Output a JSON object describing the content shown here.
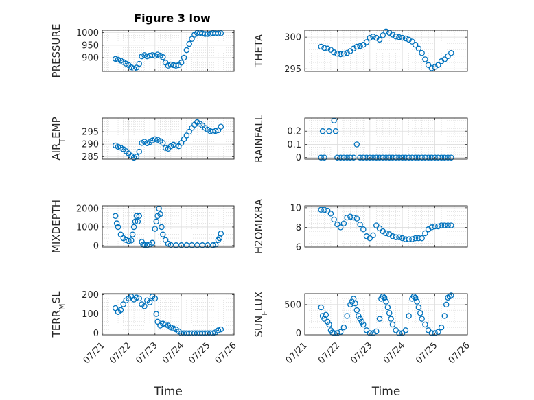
{
  "figure": {
    "title": "Figure 3 low",
    "marker_color": "#0072bd"
  },
  "chart_data": [
    {
      "type": "scatter",
      "ylabel": "PRESSURE",
      "xlabel": "",
      "xlim": [
        0,
        5
      ],
      "ylim": [
        845,
        1010
      ],
      "xticks": [
        0,
        1,
        2,
        3,
        4,
        5
      ],
      "xticklabels": [
        "07/21",
        "07/22",
        "07/23",
        "07/24",
        "07/25",
        "07/26"
      ],
      "yticks": [
        900,
        950,
        1000
      ],
      "yticklabels": [
        "900",
        "950",
        "1000"
      ],
      "x": [
        0.5,
        0.6,
        0.7,
        0.8,
        0.9,
        1.0,
        1.1,
        1.2,
        1.3,
        1.4,
        1.5,
        1.6,
        1.7,
        1.8,
        1.9,
        2.0,
        2.1,
        2.2,
        2.3,
        2.4,
        2.5,
        2.6,
        2.7,
        2.8,
        2.9,
        3.0,
        3.1,
        3.2,
        3.3,
        3.4,
        3.5,
        3.6,
        3.7,
        3.8,
        3.9,
        4.0,
        4.1,
        4.2,
        4.3,
        4.4,
        4.5
      ],
      "y": [
        895,
        892,
        888,
        882,
        876,
        870,
        861,
        856,
        860,
        875,
        905,
        910,
        905,
        908,
        910,
        908,
        912,
        908,
        902,
        880,
        868,
        872,
        870,
        868,
        870,
        880,
        900,
        930,
        955,
        975,
        992,
        999,
        1000,
        997,
        995,
        995,
        996,
        998,
        997,
        997,
        998
      ]
    },
    {
      "type": "scatter",
      "ylabel": "THETA",
      "xlabel": "",
      "xlim": [
        0,
        5
      ],
      "ylim": [
        294.6,
        301.1
      ],
      "xticks": [
        0,
        1,
        2,
        3,
        4,
        5
      ],
      "xticklabels": [
        "07/21",
        "07/22",
        "07/23",
        "07/24",
        "07/25",
        "07/26"
      ],
      "yticks": [
        295,
        300
      ],
      "yticklabels": [
        "295",
        "300"
      ],
      "x": [
        0.5,
        0.6,
        0.7,
        0.8,
        0.9,
        1.0,
        1.1,
        1.2,
        1.3,
        1.4,
        1.5,
        1.6,
        1.7,
        1.8,
        1.9,
        2.0,
        2.1,
        2.2,
        2.3,
        2.4,
        2.5,
        2.6,
        2.7,
        2.8,
        2.9,
        3.0,
        3.1,
        3.2,
        3.3,
        3.4,
        3.5,
        3.6,
        3.7,
        3.8,
        3.9,
        4.0,
        4.1,
        4.2,
        4.3,
        4.4,
        4.5
      ],
      "y": [
        298.5,
        298.3,
        298.2,
        298.0,
        297.6,
        297.4,
        297.3,
        297.4,
        297.5,
        297.8,
        298.2,
        298.5,
        298.6,
        298.8,
        299.2,
        299.9,
        300.1,
        299.9,
        299.6,
        300.3,
        300.9,
        300.7,
        300.4,
        300.1,
        300.0,
        299.9,
        299.8,
        299.6,
        299.3,
        298.8,
        298.2,
        297.5,
        296.5,
        295.6,
        295.1,
        295.3,
        295.6,
        296.2,
        296.5,
        297.0,
        297.5
      ]
    },
    {
      "type": "scatter",
      "ylabel": "AIR_T_EMP",
      "xlabel": "",
      "xlim": [
        0,
        5
      ],
      "ylim": [
        284,
        300.5
      ],
      "xticks": [
        0,
        1,
        2,
        3,
        4,
        5
      ],
      "xticklabels": [
        "07/21",
        "07/22",
        "07/23",
        "07/24",
        "07/25",
        "07/26"
      ],
      "yticks": [
        285,
        290,
        295
      ],
      "yticklabels": [
        "285",
        "290",
        "295"
      ],
      "x": [
        0.5,
        0.6,
        0.7,
        0.8,
        0.9,
        1.0,
        1.1,
        1.2,
        1.3,
        1.4,
        1.5,
        1.6,
        1.7,
        1.8,
        1.9,
        2.0,
        2.1,
        2.2,
        2.3,
        2.4,
        2.5,
        2.6,
        2.7,
        2.8,
        2.9,
        3.0,
        3.1,
        3.2,
        3.3,
        3.4,
        3.5,
        3.6,
        3.7,
        3.8,
        3.9,
        4.0,
        4.1,
        4.2,
        4.3,
        4.4,
        4.5
      ],
      "y": [
        289.5,
        289.0,
        288.6,
        288.0,
        287.2,
        286.3,
        285.3,
        284.6,
        285.0,
        287.0,
        290.5,
        291.0,
        290.4,
        290.8,
        291.5,
        292.0,
        291.8,
        291.3,
        290.5,
        288.5,
        288.2,
        289.2,
        289.8,
        289.5,
        289.2,
        290.5,
        292.0,
        293.5,
        295.0,
        296.5,
        297.8,
        298.8,
        298.2,
        297.5,
        296.5,
        295.8,
        295.2,
        295.0,
        295.3,
        295.6,
        297.0
      ]
    },
    {
      "type": "scatter",
      "ylabel": "RAINFALL",
      "xlabel": "",
      "xlim": [
        0,
        5
      ],
      "ylim": [
        -0.012,
        0.3
      ],
      "xticks": [
        0,
        1,
        2,
        3,
        4,
        5
      ],
      "xticklabels": [
        "07/21",
        "07/22",
        "07/23",
        "07/24",
        "07/25",
        "07/26"
      ],
      "yticks": [
        0,
        0.1,
        0.2
      ],
      "yticklabels": [
        "0",
        "0.1",
        "0.2"
      ],
      "x": [
        0.5,
        0.55,
        0.6,
        0.75,
        0.9,
        0.95,
        1.0,
        1.1,
        1.2,
        1.3,
        1.4,
        1.5,
        1.6,
        1.7,
        1.8,
        1.9,
        2.0,
        2.1,
        2.2,
        2.3,
        2.4,
        2.5,
        2.6,
        2.7,
        2.8,
        2.9,
        3.0,
        3.1,
        3.2,
        3.3,
        3.4,
        3.5,
        3.6,
        3.7,
        3.8,
        3.9,
        4.0,
        4.1,
        4.2,
        4.3,
        4.4,
        4.5
      ],
      "y": [
        0,
        0.2,
        0,
        0.2,
        0.28,
        0.2,
        0,
        0,
        0,
        0,
        0,
        0,
        0.1,
        0,
        0,
        0,
        0,
        0,
        0,
        0,
        0,
        0,
        0,
        0,
        0,
        0,
        0,
        0,
        0,
        0,
        0,
        0,
        0,
        0,
        0,
        0,
        0,
        0,
        0,
        0,
        0,
        0
      ]
    },
    {
      "type": "scatter",
      "ylabel": "MIXDEPTH",
      "xlabel": "",
      "xlim": [
        0,
        5
      ],
      "ylim": [
        -80,
        2150
      ],
      "xticks": [
        0,
        1,
        2,
        3,
        4,
        5
      ],
      "xticklabels": [
        "07/21",
        "07/22",
        "07/23",
        "07/24",
        "07/25",
        "07/26"
      ],
      "yticks": [
        0,
        1000,
        2000
      ],
      "yticklabels": [
        "0",
        "1000",
        "2000"
      ],
      "x": [
        0.5,
        0.55,
        0.6,
        0.7,
        0.8,
        0.9,
        1.0,
        1.1,
        1.15,
        1.2,
        1.25,
        1.3,
        1.35,
        1.4,
        1.5,
        1.55,
        1.6,
        1.7,
        1.8,
        1.9,
        2.0,
        2.05,
        2.1,
        2.15,
        2.2,
        2.25,
        2.3,
        2.4,
        2.5,
        2.6,
        2.8,
        3.0,
        3.2,
        3.4,
        3.6,
        3.8,
        4.0,
        4.2,
        4.3,
        4.4,
        4.45,
        4.5
      ],
      "y": [
        1600,
        1200,
        1000,
        600,
        400,
        300,
        250,
        280,
        600,
        1000,
        1300,
        1600,
        1300,
        1600,
        200,
        50,
        30,
        20,
        50,
        150,
        900,
        1300,
        1600,
        2000,
        1700,
        1000,
        600,
        300,
        100,
        30,
        20,
        20,
        20,
        20,
        20,
        20,
        20,
        20,
        50,
        300,
        400,
        650
      ]
    },
    {
      "type": "scatter",
      "ylabel": "H2OMIXRA",
      "xlabel": "",
      "xlim": [
        0,
        5
      ],
      "ylim": [
        6,
        10.2
      ],
      "xticks": [
        0,
        1,
        2,
        3,
        4,
        5
      ],
      "xticklabels": [
        "07/21",
        "07/22",
        "07/23",
        "07/24",
        "07/25",
        "07/26"
      ],
      "yticks": [
        6,
        8,
        10
      ],
      "yticklabels": [
        "6",
        "8",
        "10"
      ],
      "x": [
        0.5,
        0.6,
        0.7,
        0.8,
        0.9,
        1.0,
        1.1,
        1.2,
        1.3,
        1.4,
        1.5,
        1.6,
        1.7,
        1.8,
        1.9,
        2.0,
        2.1,
        2.2,
        2.3,
        2.4,
        2.5,
        2.6,
        2.7,
        2.8,
        2.9,
        3.0,
        3.1,
        3.2,
        3.3,
        3.4,
        3.5,
        3.6,
        3.7,
        3.8,
        3.9,
        4.0,
        4.1,
        4.2,
        4.3,
        4.4,
        4.5
      ],
      "y": [
        9.8,
        9.8,
        9.7,
        9.4,
        8.8,
        8.3,
        8.0,
        8.4,
        9.0,
        9.1,
        9.0,
        8.9,
        8.3,
        7.8,
        7.1,
        6.9,
        7.2,
        8.2,
        7.9,
        7.6,
        7.4,
        7.3,
        7.1,
        7.0,
        7.0,
        6.9,
        6.8,
        6.8,
        6.8,
        6.9,
        6.9,
        6.9,
        7.4,
        7.8,
        8.0,
        8.1,
        8.1,
        8.2,
        8.2,
        8.2,
        8.2
      ]
    },
    {
      "type": "scatter",
      "ylabel": "TERR_M_SL",
      "xlabel": "Time",
      "xlim": [
        0,
        5
      ],
      "ylim": [
        -8,
        205
      ],
      "xticks": [
        0,
        1,
        2,
        3,
        4,
        5
      ],
      "xticklabels": [
        "07/21",
        "07/22",
        "07/23",
        "07/24",
        "07/25",
        "07/26"
      ],
      "yticks": [
        0,
        100,
        200
      ],
      "yticklabels": [
        "0",
        "100",
        "200"
      ],
      "x": [
        0.5,
        0.6,
        0.7,
        0.8,
        0.9,
        1.0,
        1.1,
        1.2,
        1.3,
        1.4,
        1.5,
        1.6,
        1.7,
        1.8,
        1.9,
        2.0,
        2.05,
        2.1,
        2.2,
        2.3,
        2.4,
        2.5,
        2.6,
        2.7,
        2.8,
        2.9,
        3.0,
        3.1,
        3.2,
        3.3,
        3.4,
        3.5,
        3.6,
        3.7,
        3.8,
        3.9,
        4.0,
        4.1,
        4.2,
        4.3,
        4.4,
        4.5
      ],
      "y": [
        130,
        110,
        120,
        150,
        170,
        180,
        190,
        175,
        185,
        180,
        150,
        140,
        170,
        160,
        190,
        180,
        100,
        60,
        40,
        50,
        45,
        40,
        30,
        25,
        20,
        10,
        0,
        0,
        0,
        0,
        0,
        0,
        0,
        0,
        0,
        0,
        0,
        0,
        0,
        5,
        15,
        20
      ]
    },
    {
      "type": "scatter",
      "ylabel": "SUN_F_LUX",
      "xlabel": "Time",
      "xlim": [
        0,
        5
      ],
      "ylim": [
        -30,
        690
      ],
      "xticks": [
        0,
        1,
        2,
        3,
        4,
        5
      ],
      "xticklabels": [
        "07/21",
        "07/22",
        "07/23",
        "07/24",
        "07/25",
        "07/26"
      ],
      "yticks": [
        0,
        500
      ],
      "yticklabels": [
        "0",
        "500"
      ],
      "x": [
        0.5,
        0.55,
        0.6,
        0.65,
        0.7,
        0.75,
        0.8,
        0.85,
        0.9,
        1.0,
        1.1,
        1.2,
        1.3,
        1.4,
        1.45,
        1.5,
        1.55,
        1.6,
        1.65,
        1.7,
        1.75,
        1.8,
        1.9,
        2.0,
        2.1,
        2.2,
        2.3,
        2.35,
        2.4,
        2.45,
        2.5,
        2.55,
        2.6,
        2.65,
        2.7,
        2.8,
        2.9,
        3.0,
        3.1,
        3.2,
        3.3,
        3.35,
        3.4,
        3.45,
        3.5,
        3.55,
        3.6,
        3.7,
        3.8,
        3.9,
        4.0,
        4.1,
        4.2,
        4.3,
        4.35,
        4.4,
        4.45,
        4.5
      ],
      "y": [
        450,
        300,
        250,
        320,
        200,
        150,
        50,
        10,
        0,
        0,
        20,
        100,
        300,
        500,
        550,
        600,
        520,
        400,
        300,
        250,
        200,
        150,
        50,
        0,
        0,
        30,
        250,
        600,
        640,
        620,
        550,
        450,
        350,
        250,
        150,
        50,
        0,
        0,
        50,
        300,
        600,
        640,
        620,
        550,
        450,
        350,
        250,
        150,
        50,
        0,
        0,
        20,
        100,
        300,
        500,
        620,
        640,
        660
      ]
    }
  ]
}
